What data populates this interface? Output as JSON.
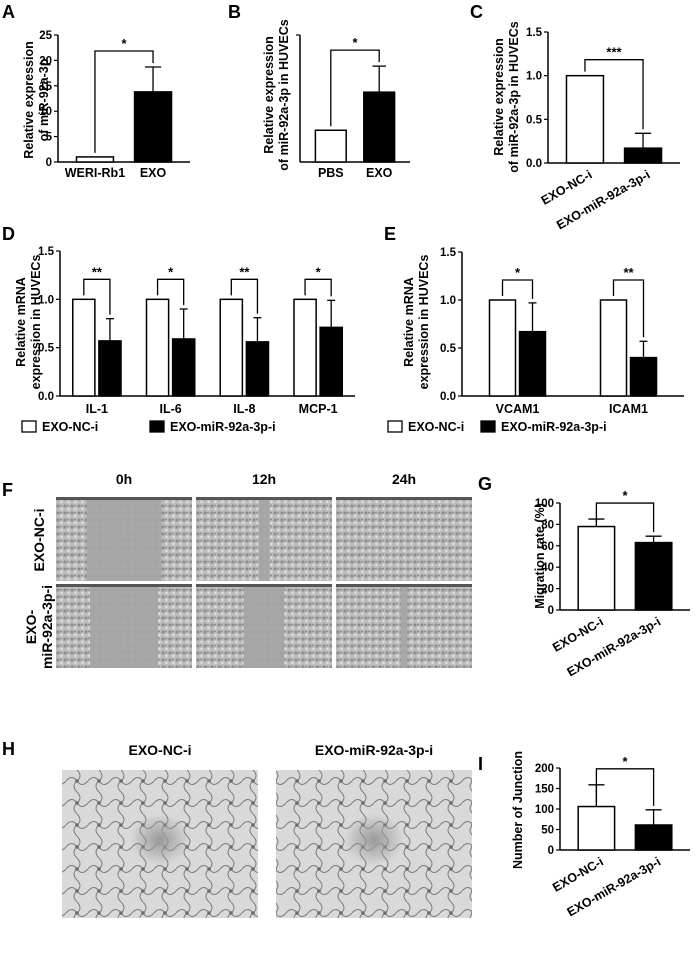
{
  "panels": [
    {
      "id": "A",
      "label": "A",
      "ylabel": [
        "Relative expression",
        "of miR-92a-3p"
      ],
      "ylim": [
        0,
        25
      ],
      "yticks": [
        0,
        5,
        10,
        15,
        20,
        25
      ],
      "categories": [
        "WERI-Rb1",
        "EXO"
      ],
      "values": [
        1.0,
        13.8
      ],
      "errors": [
        0,
        4.9
      ],
      "fills": [
        "#ffffff",
        "#000000"
      ],
      "sig": [
        {
          "from": 0,
          "to": 1,
          "text": "*"
        }
      ],
      "rotated": false
    },
    {
      "id": "B",
      "label": "B",
      "ylabel": [
        "Relative expression",
        "of miR-92a-3p in HUVECs"
      ],
      "ylim": [
        0,
        4
      ],
      "yticks": [],
      "categories": [
        "PBS",
        "EXO"
      ],
      "values": [
        1.0,
        2.2
      ],
      "errors": [
        0,
        0.82
      ],
      "fills": [
        "#ffffff",
        "#000000"
      ],
      "sig": [
        {
          "from": 0,
          "to": 1,
          "text": "*"
        }
      ],
      "rotated": false
    },
    {
      "id": "C",
      "label": "C",
      "ylabel": [
        "Relative expression",
        "of miR-92a-3p in HUVECs"
      ],
      "ylim": [
        0,
        1.5
      ],
      "yticks": [
        0,
        0.5,
        1.0,
        1.5
      ],
      "tickfmt": 1,
      "categories": [
        "EXO-NC-i",
        "EXO-miR-92a-3p-i"
      ],
      "values": [
        1.0,
        0.17
      ],
      "errors": [
        0,
        0.17
      ],
      "fills": [
        "#ffffff",
        "#000000"
      ],
      "sig": [
        {
          "from": 0,
          "to": 1,
          "text": "***"
        }
      ],
      "rotated": true
    },
    {
      "id": "G",
      "label": "G",
      "ylabel": [
        "Migration rate (%)"
      ],
      "ylim": [
        0,
        100
      ],
      "yticks": [
        0,
        20,
        40,
        60,
        80,
        100
      ],
      "categories": [
        "EXO-NC-i",
        "EXO-miR-92a-3p-i"
      ],
      "values": [
        78,
        63
      ],
      "errors": [
        7,
        6
      ],
      "fills": [
        "#ffffff",
        "#000000"
      ],
      "sig": [
        {
          "from": 0,
          "to": 1,
          "text": "*"
        }
      ],
      "rotated": true
    },
    {
      "id": "I",
      "label": "I",
      "ylabel": [
        "Number of  Junction"
      ],
      "ylim": [
        0,
        200
      ],
      "yticks": [
        0,
        50,
        100,
        150,
        200
      ],
      "categories": [
        "EXO-NC-i",
        "EXO-miR-92a-3p-i"
      ],
      "values": [
        106,
        61
      ],
      "errors": [
        53,
        37
      ],
      "fills": [
        "#ffffff",
        "#000000"
      ],
      "sig": [
        {
          "from": 0,
          "to": 1,
          "text": "*"
        }
      ],
      "rotated": true
    }
  ],
  "grouped": [
    {
      "id": "D",
      "label": "D",
      "ylabel": [
        "Relative mRNA",
        "expression in HUVECs"
      ],
      "ylim": [
        0,
        1.5
      ],
      "yticks": [
        0,
        0.5,
        1.0,
        1.5
      ],
      "categories": [
        "IL-1",
        "IL-6",
        "IL-8",
        "MCP-1"
      ],
      "series": [
        {
          "name": "EXO-NC-i",
          "values": [
            1,
            1,
            1,
            1
          ],
          "errors": [
            0,
            0,
            0,
            0
          ],
          "fill": "#ffffff"
        },
        {
          "name": "EXO-miR-92a-3p-i",
          "values": [
            0.57,
            0.59,
            0.56,
            0.71
          ],
          "errors": [
            0.23,
            0.31,
            0.25,
            0.28
          ],
          "fill": "#000000"
        }
      ],
      "sig": [
        "**",
        "*",
        "**",
        "*"
      ]
    },
    {
      "id": "E",
      "label": "E",
      "ylabel": [
        "Relative mRNA",
        "expression in HUVECs"
      ],
      "ylim": [
        0,
        1.5
      ],
      "yticks": [
        0,
        0.5,
        1.0,
        1.5
      ],
      "categories": [
        "VCAM1",
        "ICAM1"
      ],
      "series": [
        {
          "name": "EXO-NC-i",
          "values": [
            1,
            1
          ],
          "errors": [
            0,
            0
          ],
          "fill": "#ffffff"
        },
        {
          "name": "EXO-miR-92a-3p-i",
          "values": [
            0.67,
            0.4
          ],
          "errors": [
            0.3,
            0.17
          ],
          "fill": "#000000"
        }
      ],
      "sig": [
        "*",
        "**"
      ]
    }
  ],
  "panelF": {
    "label": "F",
    "columns": [
      "0h",
      "12h",
      "24h"
    ],
    "rows": [
      "EXO-NC-i",
      "EXO-\nmiR-92a-3p-i"
    ],
    "gaps": [
      0.55,
      0.08,
      0.0,
      0.5,
      0.3,
      0.05
    ]
  },
  "panelH": {
    "label": "H",
    "columns": [
      "EXO-NC-i",
      "EXO-miR-92a-3p-i"
    ]
  },
  "chart_data": [
    {
      "type": "bar",
      "panel": "A",
      "categories": [
        "WERI-Rb1",
        "EXO"
      ],
      "values": [
        1.0,
        13.8
      ],
      "ylabel": "Relative expression of miR-92a-3p",
      "ylim": [
        0,
        25
      ]
    },
    {
      "type": "bar",
      "panel": "B",
      "categories": [
        "PBS",
        "EXO"
      ],
      "values": [
        1.0,
        2.2
      ],
      "ylabel": "Relative expression of miR-92a-3p in HUVECs"
    },
    {
      "type": "bar",
      "panel": "C",
      "categories": [
        "EXO-NC-i",
        "EXO-miR-92a-3p-i"
      ],
      "values": [
        1.0,
        0.17
      ],
      "ylabel": "Relative expression of miR-92a-3p in HUVECs",
      "ylim": [
        0,
        1.5
      ]
    },
    {
      "type": "bar",
      "panel": "D",
      "categories": [
        "IL-1",
        "IL-6",
        "IL-8",
        "MCP-1"
      ],
      "series": [
        {
          "name": "EXO-NC-i",
          "values": [
            1,
            1,
            1,
            1
          ]
        },
        {
          "name": "EXO-miR-92a-3p-i",
          "values": [
            0.57,
            0.59,
            0.56,
            0.71
          ]
        }
      ],
      "ylabel": "Relative mRNA expression in HUVECs",
      "ylim": [
        0,
        1.5
      ]
    },
    {
      "type": "bar",
      "panel": "E",
      "categories": [
        "VCAM1",
        "ICAM1"
      ],
      "series": [
        {
          "name": "EXO-NC-i",
          "values": [
            1,
            1
          ]
        },
        {
          "name": "EXO-miR-92a-3p-i",
          "values": [
            0.67,
            0.4
          ]
        }
      ],
      "ylabel": "Relative mRNA expression in HUVECs",
      "ylim": [
        0,
        1.5
      ]
    },
    {
      "type": "bar",
      "panel": "G",
      "categories": [
        "EXO-NC-i",
        "EXO-miR-92a-3p-i"
      ],
      "values": [
        78,
        63
      ],
      "ylabel": "Migration rate (%)",
      "ylim": [
        0,
        100
      ]
    },
    {
      "type": "bar",
      "panel": "I",
      "categories": [
        "EXO-NC-i",
        "EXO-miR-92a-3p-i"
      ],
      "values": [
        106,
        61
      ],
      "ylabel": "Number of  Junction",
      "ylim": [
        0,
        200
      ]
    }
  ]
}
